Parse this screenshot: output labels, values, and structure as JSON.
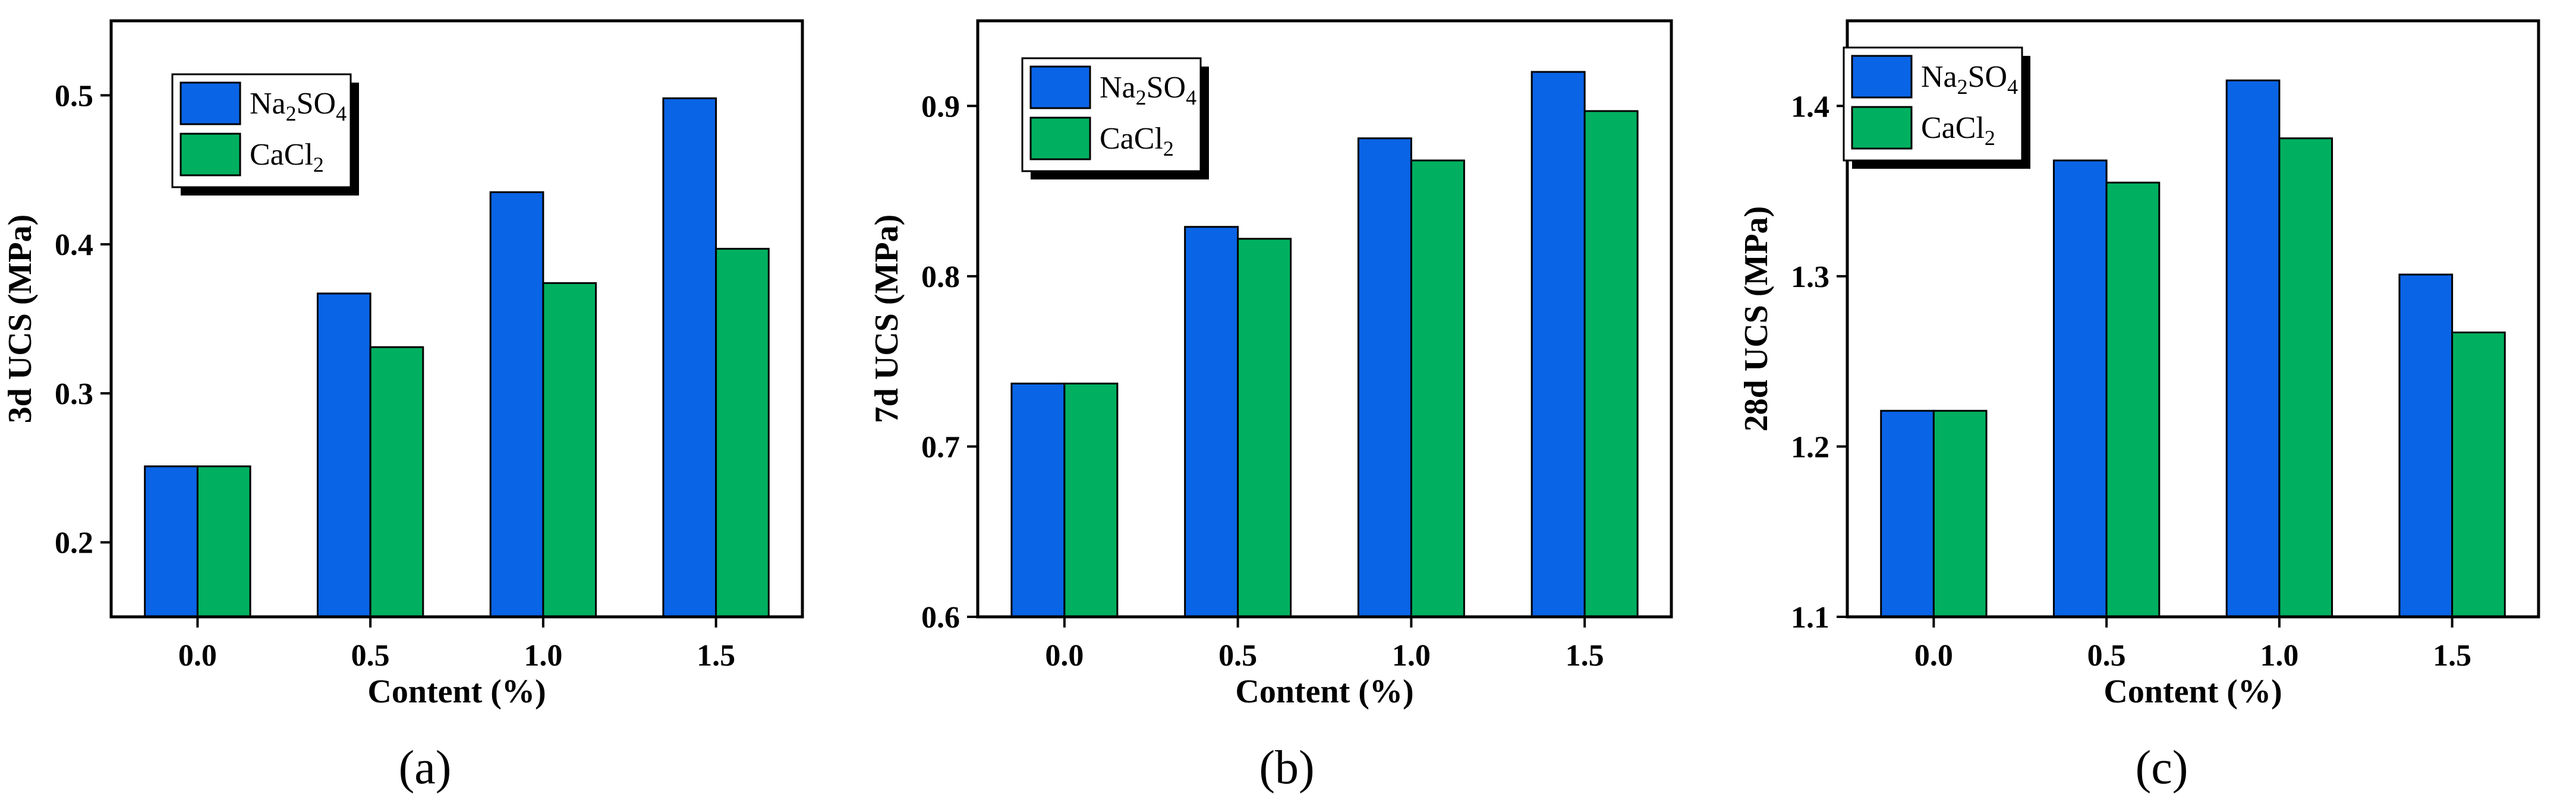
{
  "figure": {
    "panel_labels": [
      "(a)",
      "(b)",
      "(c)"
    ]
  },
  "chart_data": [
    {
      "type": "bar",
      "panel": "(a)",
      "title": "",
      "xlabel": "Content (%)",
      "ylabel": "3d UCS (MPa)",
      "categories": [
        "0.0",
        "0.5",
        "1.0",
        "1.5"
      ],
      "ylim": [
        0.15,
        0.55
      ],
      "yticks": [
        0.2,
        0.3,
        0.4,
        0.5
      ],
      "ytick_labels": [
        "0.2",
        "0.3",
        "0.4",
        "0.5"
      ],
      "series": [
        {
          "name": "Na₂SO₄",
          "name_base": "Na",
          "name_sub1": "2",
          "name_mid": "SO",
          "name_sub2": "4",
          "values": [
            0.251,
            0.367,
            0.435,
            0.498
          ]
        },
        {
          "name": "CaCl₂",
          "name_base": "CaCl",
          "name_sub1": "2",
          "name_mid": "",
          "name_sub2": "",
          "values": [
            0.251,
            0.331,
            0.374,
            0.397
          ]
        }
      ],
      "legend_position": "top-left",
      "grid": false
    },
    {
      "type": "bar",
      "panel": "(b)",
      "title": "",
      "xlabel": "Content (%)",
      "ylabel": "7d UCS (MPa)",
      "categories": [
        "0.0",
        "0.5",
        "1.0",
        "1.5"
      ],
      "ylim": [
        0.6,
        0.95
      ],
      "yticks": [
        0.6,
        0.7,
        0.8,
        0.9
      ],
      "ytick_labels": [
        "0.6",
        "0.7",
        "0.8",
        "0.9"
      ],
      "series": [
        {
          "name": "Na₂SO₄",
          "name_base": "Na",
          "name_sub1": "2",
          "name_mid": "SO",
          "name_sub2": "4",
          "values": [
            0.737,
            0.829,
            0.881,
            0.92
          ]
        },
        {
          "name": "CaCl₂",
          "name_base": "CaCl",
          "name_sub1": "2",
          "name_mid": "",
          "name_sub2": "",
          "values": [
            0.737,
            0.822,
            0.868,
            0.897
          ]
        }
      ],
      "legend_position": "top-left",
      "grid": false
    },
    {
      "type": "bar",
      "panel": "(c)",
      "title": "",
      "xlabel": "Content (%)",
      "ylabel": "28d UCS (MPa)",
      "categories": [
        "0.0",
        "0.5",
        "1.0",
        "1.5"
      ],
      "ylim": [
        1.1,
        1.45
      ],
      "yticks": [
        1.1,
        1.2,
        1.3,
        1.4
      ],
      "ytick_labels": [
        "1.1",
        "1.2",
        "1.3",
        "1.4"
      ],
      "series": [
        {
          "name": "Na₂SO₄",
          "name_base": "Na",
          "name_sub1": "2",
          "name_mid": "SO",
          "name_sub2": "4",
          "values": [
            1.221,
            1.368,
            1.415,
            1.301
          ]
        },
        {
          "name": "CaCl₂",
          "name_base": "CaCl",
          "name_sub1": "2",
          "name_mid": "",
          "name_sub2": "",
          "values": [
            1.221,
            1.355,
            1.381,
            1.267
          ]
        }
      ],
      "legend_position": "top-left",
      "grid": false
    }
  ],
  "colors": {
    "series": [
      "#0a64e6",
      "#00b060"
    ],
    "axis": "#000000",
    "legend_shadow": "#000000"
  }
}
